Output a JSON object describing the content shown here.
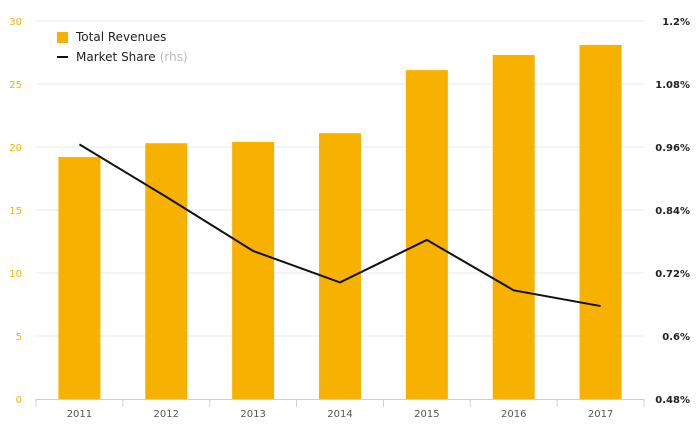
{
  "colors": {
    "bar": "#F7B100",
    "line": "#111111",
    "left_axis_text": "#F7B100",
    "right_axis_text": "#222222",
    "grid": "#e8e8e8",
    "x_axis_text": "#555555"
  },
  "legend": {
    "bar_label": "Total Revenues",
    "line_label": "Market Share",
    "line_note": "(rhs)"
  },
  "chart_data": {
    "type": "bar",
    "categories": [
      "2011",
      "2012",
      "2013",
      "2014",
      "2015",
      "2016",
      "2017"
    ],
    "series": [
      {
        "name": "Total Revenues",
        "type": "bar",
        "axis": "left",
        "values": [
          19.2,
          20.3,
          20.4,
          21.1,
          26.1,
          27.3,
          28.1
        ]
      },
      {
        "name": "Market Share (rhs)",
        "type": "line",
        "axis": "right",
        "values": [
          0.965,
          0.865,
          0.762,
          0.702,
          0.783,
          0.687,
          0.657
        ]
      }
    ],
    "ylim_left": [
      0,
      30
    ],
    "yticks_left": [
      "0",
      "5",
      "10",
      "15",
      "20",
      "25",
      "30"
    ],
    "ylim_right": [
      0.48,
      1.2
    ],
    "yticks_right": [
      "0.48%",
      "0.6%",
      "0.72%",
      "0.84%",
      "0.96%",
      "1.08%",
      "1.2%"
    ],
    "grid": true,
    "legend_position": "top-left"
  }
}
